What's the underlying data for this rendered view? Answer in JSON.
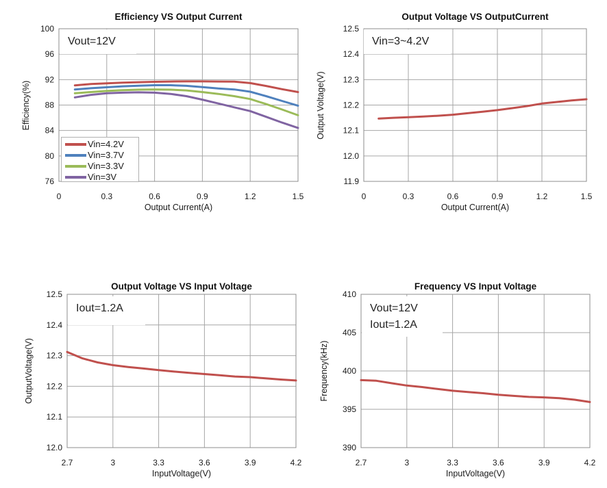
{
  "page": {
    "background": "#ffffff"
  },
  "colors": {
    "grid": "#a6a6a6",
    "plot_border": "#8c8c8c",
    "text": "#1a1a1a",
    "legend_border": "#b0b0b0"
  },
  "chart_data": [
    {
      "id": "efficiency-vs-output-current",
      "type": "line",
      "title": "Efficiency VS Output Current",
      "annotation": {
        "lines": [
          "Vout=12V"
        ]
      },
      "xlabel": "Output Current(A)",
      "ylabel": "Efficiency(%)",
      "xlim": [
        0,
        1.5
      ],
      "ylim": [
        76,
        100
      ],
      "xticks": [
        0,
        0.3,
        0.6,
        0.9,
        1.2,
        1.5
      ],
      "xtick_labels": [
        "0",
        "0.3",
        "0.6",
        "0.9",
        "1.2",
        "1.5"
      ],
      "yticks": [
        76,
        80,
        84,
        88,
        92,
        96,
        100
      ],
      "ytick_labels": [
        "76",
        "80",
        "84",
        "88",
        "92",
        "96",
        "100"
      ],
      "grid": true,
      "legend_position": "lower left",
      "x": [
        0.1,
        0.2,
        0.3,
        0.4,
        0.5,
        0.6,
        0.7,
        0.8,
        0.9,
        1.0,
        1.1,
        1.2,
        1.3,
        1.4,
        1.5
      ],
      "series": [
        {
          "name": "Vin=4.2V",
          "color": "#C0504D",
          "values": [
            91.1,
            91.3,
            91.42,
            91.52,
            91.6,
            91.66,
            91.7,
            91.72,
            91.72,
            91.7,
            91.68,
            91.45,
            91.0,
            90.5,
            90.05
          ]
        },
        {
          "name": "Vin=3.7V",
          "color": "#4F81BD",
          "values": [
            90.45,
            90.65,
            90.8,
            90.95,
            91.05,
            91.12,
            91.12,
            91.02,
            90.82,
            90.6,
            90.45,
            90.1,
            89.4,
            88.65,
            87.9
          ]
        },
        {
          "name": "Vin=3.3V",
          "color": "#9BBB59",
          "values": [
            89.85,
            90.05,
            90.22,
            90.35,
            90.42,
            90.45,
            90.42,
            90.3,
            90.05,
            89.75,
            89.4,
            88.95,
            88.15,
            87.3,
            86.4
          ]
        },
        {
          "name": "Vin=3V",
          "color": "#8064A2",
          "values": [
            89.2,
            89.6,
            89.85,
            89.95,
            90.0,
            89.95,
            89.75,
            89.4,
            88.85,
            88.25,
            87.65,
            87.05,
            86.15,
            85.25,
            84.4
          ]
        }
      ]
    },
    {
      "id": "output-voltage-vs-output-current",
      "type": "line",
      "title": "Output Voltage VS OutputCurrent",
      "annotation": {
        "lines": [
          "Vin=3~4.2V"
        ]
      },
      "xlabel": "Output Current(A)",
      "ylabel": "Output Voltage(V)",
      "xlim": [
        0,
        1.5
      ],
      "ylim": [
        11.9,
        12.5
      ],
      "xticks": [
        0,
        0.3,
        0.6,
        0.9,
        1.2,
        1.5
      ],
      "xtick_labels": [
        "0",
        "0.3",
        "0.6",
        "0.9",
        "1.2",
        "1.5"
      ],
      "yticks": [
        11.9,
        12.0,
        12.1,
        12.2,
        12.3,
        12.4,
        12.5
      ],
      "ytick_labels": [
        "11.9",
        "12.0",
        "12.1",
        "12.2",
        "12.3",
        "12.4",
        "12.5"
      ],
      "grid": true,
      "legend_position": "none",
      "x": [
        0.1,
        0.2,
        0.3,
        0.4,
        0.5,
        0.6,
        0.7,
        0.8,
        0.9,
        1.0,
        1.1,
        1.2,
        1.3,
        1.4,
        1.5
      ],
      "series": [
        {
          "name": "Output Voltage",
          "color": "#C0504D",
          "values": [
            12.147,
            12.15,
            12.152,
            12.155,
            12.158,
            12.162,
            12.168,
            12.174,
            12.18,
            12.188,
            12.196,
            12.206,
            12.212,
            12.218,
            12.223
          ]
        }
      ]
    },
    {
      "id": "output-voltage-vs-input-voltage",
      "type": "line",
      "title": "Output Voltage VS Input Voltage",
      "annotation": {
        "lines": [
          "Iout=1.2A"
        ]
      },
      "xlabel": "InputVoltage(V)",
      "ylabel": "OutputVoltage(V)",
      "xlim": [
        2.7,
        4.2
      ],
      "ylim": [
        12.0,
        12.5
      ],
      "xticks": [
        2.7,
        3,
        3.3,
        3.6,
        3.9,
        4.2
      ],
      "xtick_labels": [
        "2.7",
        "3",
        "3.3",
        "3.6",
        "3.9",
        "4.2"
      ],
      "yticks": [
        12.0,
        12.1,
        12.2,
        12.3,
        12.4,
        12.5
      ],
      "ytick_labels": [
        "12.0",
        "12.1",
        "12.2",
        "12.3",
        "12.4",
        "12.5"
      ],
      "grid": true,
      "legend_position": "none",
      "x": [
        2.7,
        2.8,
        2.9,
        3.0,
        3.1,
        3.2,
        3.3,
        3.4,
        3.5,
        3.6,
        3.7,
        3.8,
        3.9,
        4.0,
        4.1,
        4.2
      ],
      "series": [
        {
          "name": "Output Voltage",
          "color": "#C0504D",
          "values": [
            12.312,
            12.291,
            12.278,
            12.269,
            12.263,
            12.258,
            12.253,
            12.248,
            12.244,
            12.24,
            12.236,
            12.232,
            12.23,
            12.226,
            12.222,
            12.219
          ]
        }
      ]
    },
    {
      "id": "frequency-vs-input-voltage",
      "type": "line",
      "title": "Frequency VS Input Voltage",
      "annotation": {
        "lines": [
          "Vout=12V",
          "Iout=1.2A"
        ]
      },
      "xlabel": "InputVoltage(V)",
      "ylabel": "Frequency(kHz)",
      "xlim": [
        2.7,
        4.2
      ],
      "ylim": [
        390,
        410
      ],
      "xticks": [
        2.7,
        3,
        3.3,
        3.6,
        3.9,
        4.2
      ],
      "xtick_labels": [
        "2.7",
        "3",
        "3.3",
        "3.6",
        "3.9",
        "4.2"
      ],
      "yticks": [
        390,
        395,
        400,
        405,
        410
      ],
      "ytick_labels": [
        "390",
        "395",
        "400",
        "405",
        "410"
      ],
      "grid": true,
      "legend_position": "none",
      "x": [
        2.7,
        2.8,
        2.9,
        3.0,
        3.1,
        3.2,
        3.3,
        3.4,
        3.5,
        3.6,
        3.7,
        3.8,
        3.9,
        4.0,
        4.1,
        4.2
      ],
      "series": [
        {
          "name": "Frequency",
          "color": "#C0504D",
          "values": [
            398.8,
            398.72,
            398.4,
            398.1,
            397.9,
            397.65,
            397.42,
            397.25,
            397.1,
            396.9,
            396.75,
            396.62,
            396.55,
            396.45,
            396.25,
            395.95
          ]
        }
      ]
    }
  ]
}
